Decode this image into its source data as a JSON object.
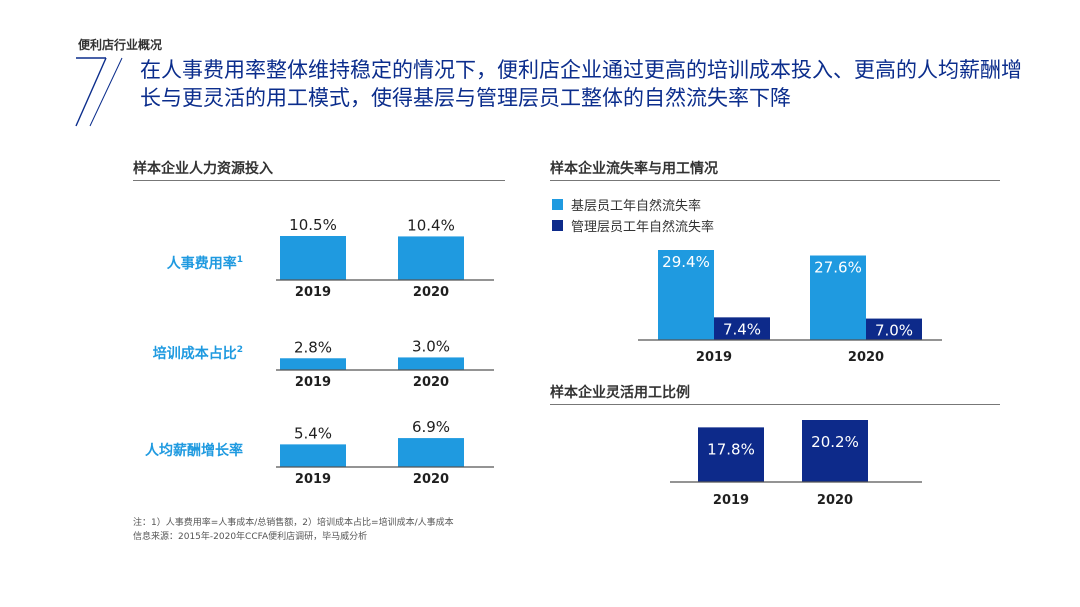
{
  "header": {
    "section": "便利店行业概况",
    "headline": "在人事费用率整体维持稳定的情况下，便利店企业通过更高的培训成本投入、更高的人均薪酬增长与更灵活的用工模式，使得基层与管理层员工整体的自然流失率下降"
  },
  "colors": {
    "light_blue": "#1f9ae0",
    "navy": "#0d2a8a",
    "label_blue": "#1f9ae0"
  },
  "left_panel": {
    "title": "样本企业人力资源投入"
  },
  "right_top": {
    "title": "样本企业流失率与用工情况"
  },
  "right_bottom": {
    "title": "样本企业灵活用工比例"
  },
  "chart_data": [
    {
      "type": "bar",
      "label": "人事费用率",
      "sup": "1",
      "categories": [
        "2019",
        "2020"
      ],
      "values": [
        10.5,
        10.4
      ],
      "value_labels": [
        "10.5%",
        "10.4%"
      ],
      "ylim": [
        0,
        10.5
      ]
    },
    {
      "type": "bar",
      "label": "培训成本占比",
      "sup": "2",
      "categories": [
        "2019",
        "2020"
      ],
      "values": [
        2.8,
        3.0
      ],
      "value_labels": [
        "2.8%",
        "3.0%"
      ],
      "ylim": [
        0,
        10.5
      ]
    },
    {
      "type": "bar",
      "label": "人均薪酬增长率",
      "sup": "",
      "categories": [
        "2019",
        "2020"
      ],
      "values": [
        5.4,
        6.9
      ],
      "value_labels": [
        "5.4%",
        "6.9%"
      ],
      "ylim": [
        0,
        10.5
      ]
    },
    {
      "type": "bar",
      "title": "样本企业流失率与用工情况",
      "categories": [
        "2019",
        "2020"
      ],
      "series": [
        {
          "name": "基层员工年自然流失率",
          "values": [
            29.4,
            27.6
          ],
          "value_labels": [
            "29.4%",
            "27.6%"
          ]
        },
        {
          "name": "管理层员工年自然流失率",
          "values": [
            7.4,
            7.0
          ],
          "value_labels": [
            "7.4%",
            "7.0%"
          ]
        }
      ],
      "ylim": [
        0,
        29.4
      ]
    },
    {
      "type": "bar",
      "title": "样本企业灵活用工比例",
      "categories": [
        "2019",
        "2020"
      ],
      "values": [
        17.8,
        20.2
      ],
      "value_labels": [
        "17.8%",
        "20.2%"
      ],
      "ylim": [
        0,
        20.2
      ]
    }
  ],
  "footnotes": {
    "note": "注：1）人事费用率=人事成本/总销售额，2）培训成本占比=培训成本/人事成本",
    "source": "信息来源：2015年-2020年CCFA便利店调研，毕马威分析"
  }
}
